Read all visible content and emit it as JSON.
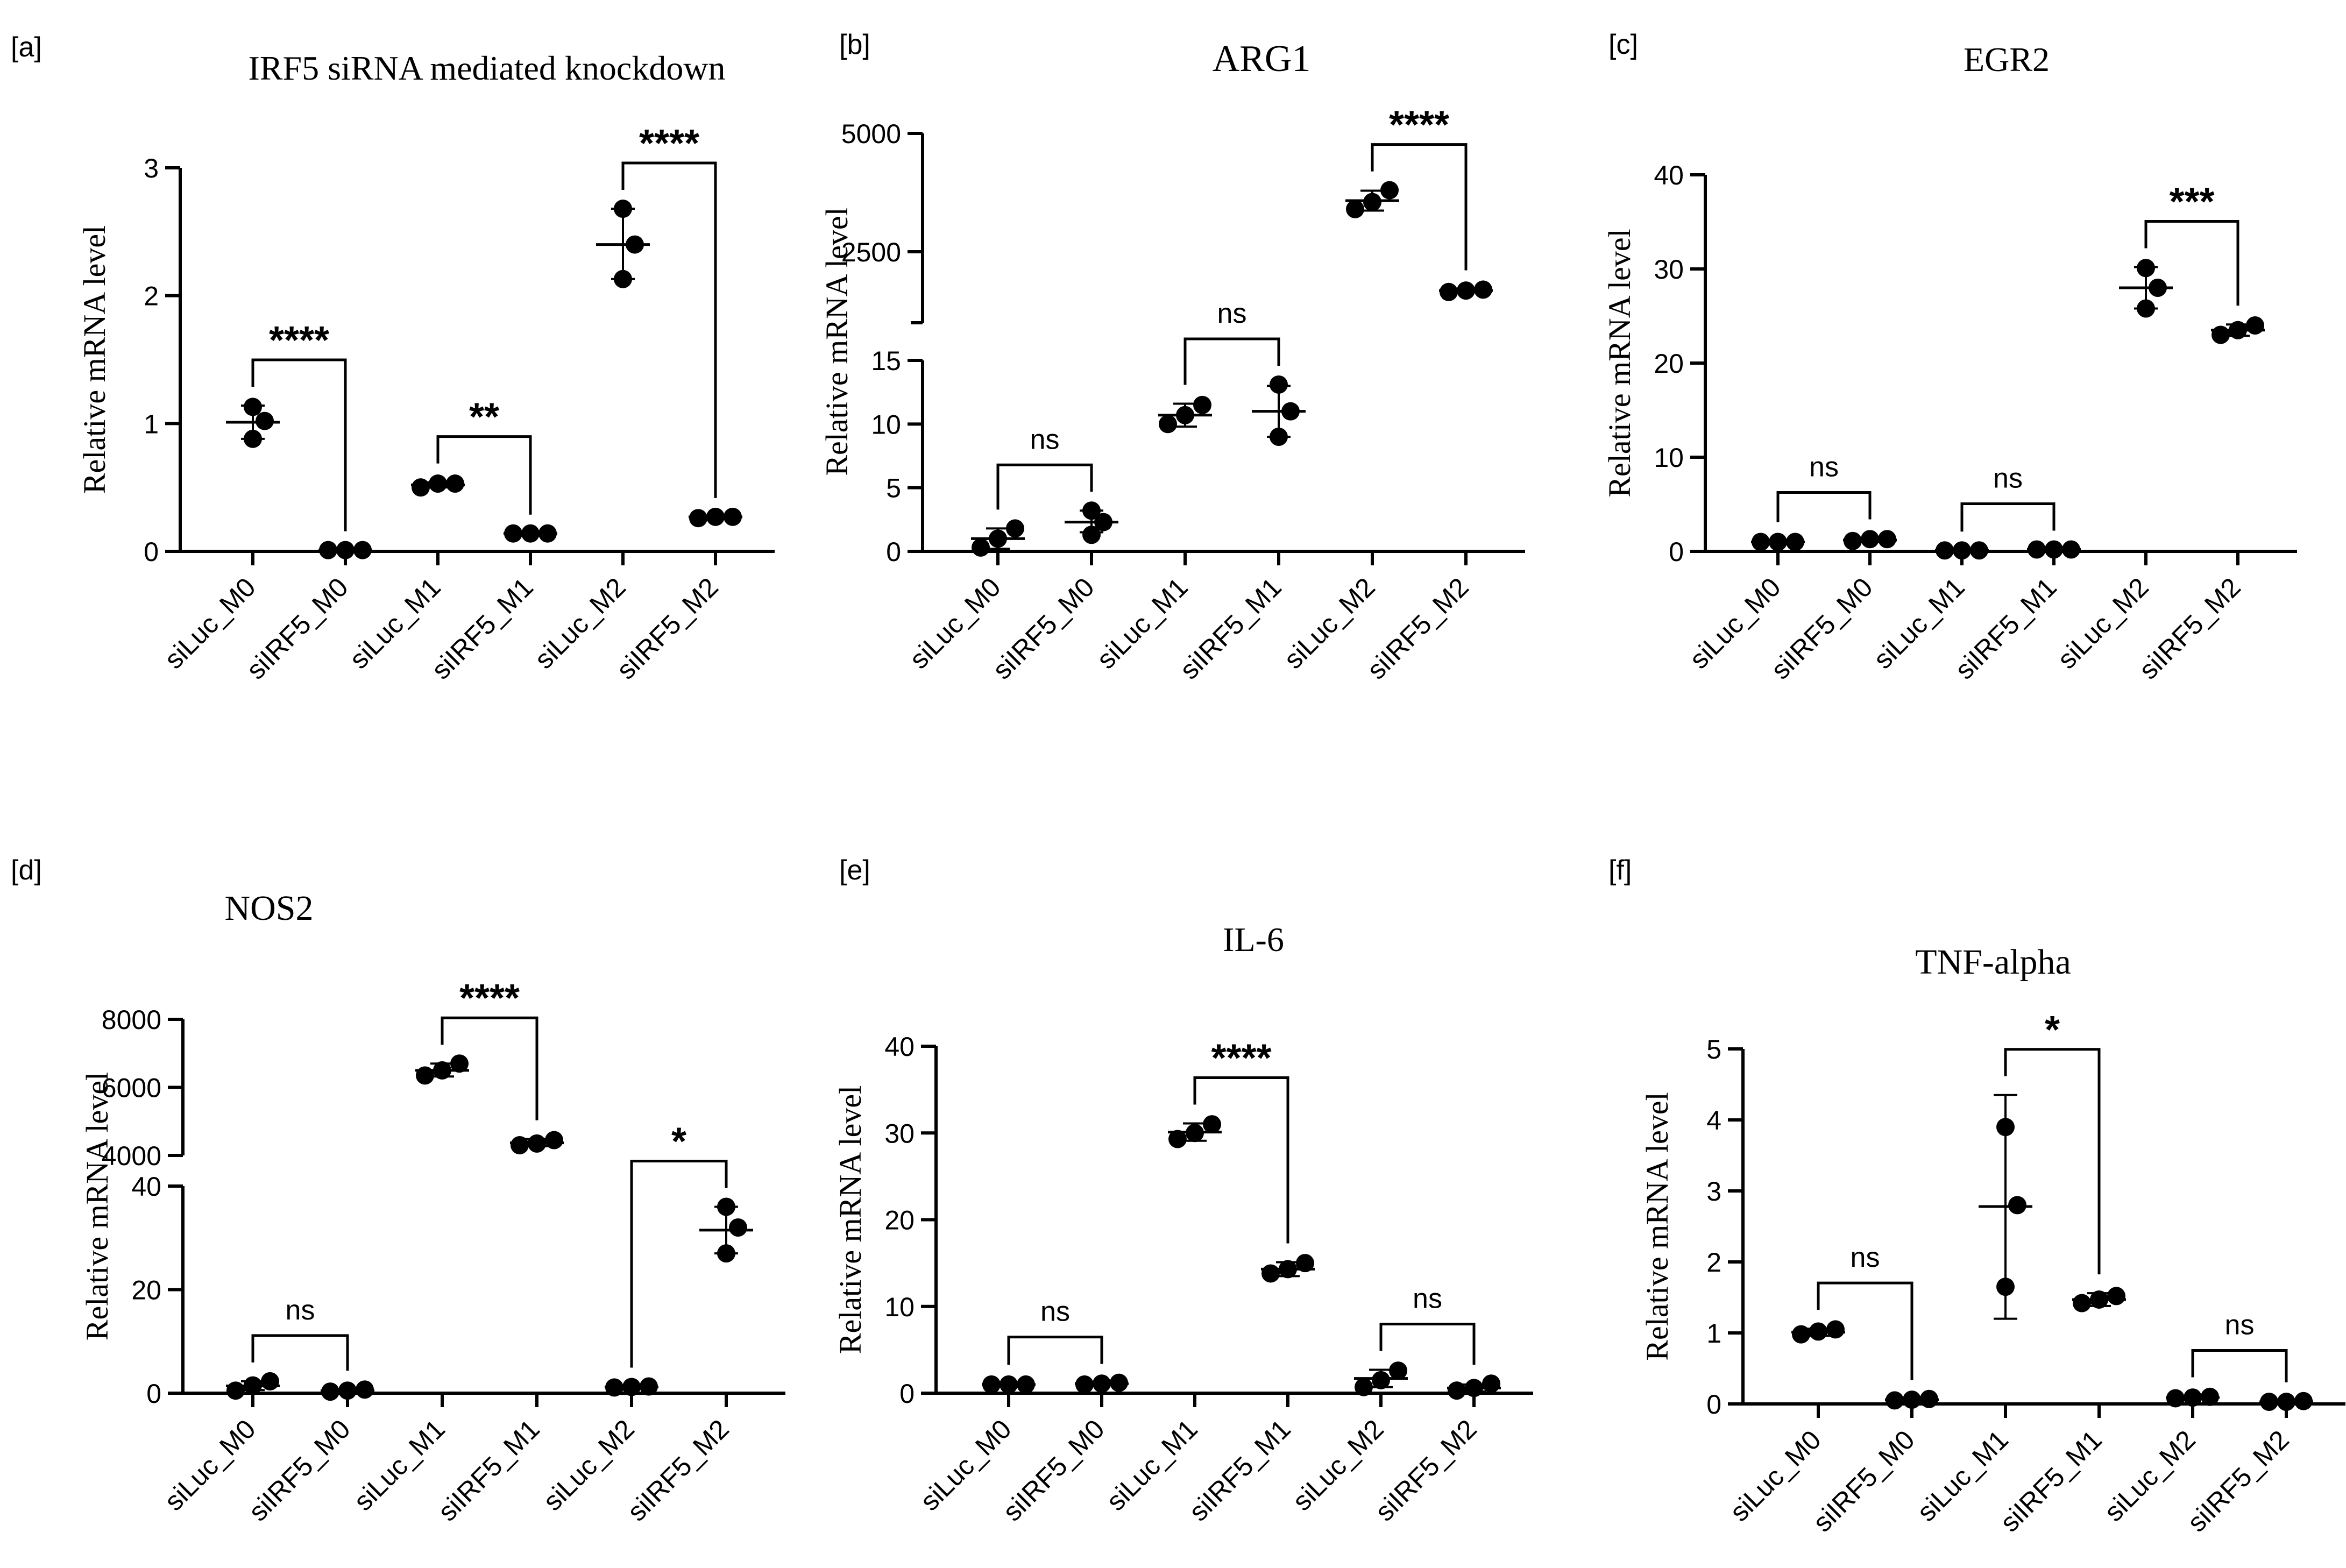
{
  "chart_data": [
    {
      "panel": "[a]",
      "type": "scatter",
      "title": "IRF5 siRNA mediated knockdown",
      "ylabel": "Relative mRNA level",
      "categories": [
        "siLuc_M0",
        "siIRF5_M0",
        "siLuc_M1",
        "siIRF5_M1",
        "siLuc_M2",
        "siIRF5_M2"
      ],
      "y_ticks": [
        "0",
        "1",
        "2",
        "3"
      ],
      "ylim": [
        0,
        3
      ],
      "points": [
        [
          0.88,
          1.02,
          1.13
        ],
        [
          0.01,
          0.01,
          0.01
        ],
        [
          0.5,
          0.53,
          0.53
        ],
        [
          0.14,
          0.14,
          0.14
        ],
        [
          2.13,
          2.4,
          2.68
        ],
        [
          0.26,
          0.27,
          0.27
        ]
      ],
      "mean": [
        1.01,
        0.01,
        0.52,
        0.14,
        2.4,
        0.27
      ],
      "sd_low": [
        0.88,
        0.01,
        0.5,
        0.14,
        2.13,
        0.26
      ],
      "sd_high": [
        1.14,
        0.01,
        0.54,
        0.14,
        2.68,
        0.27
      ],
      "comparisons": [
        {
          "pair": [
            0,
            1
          ],
          "label": "****"
        },
        {
          "pair": [
            2,
            3
          ],
          "label": "**"
        },
        {
          "pair": [
            4,
            5
          ],
          "label": "****"
        }
      ]
    },
    {
      "panel": "[b]",
      "type": "scatter",
      "title": "ARG1",
      "ylabel": "Relative mRNA level",
      "categories": [
        "siLuc_M0",
        "siIRF5_M0",
        "siLuc_M1",
        "siIRF5_M1",
        "siLuc_M2",
        "siIRF5_M2"
      ],
      "y_ticks": [
        "0",
        "5",
        "10",
        "15",
        "2500",
        "5000"
      ],
      "broken_axis": {
        "lower": [
          0,
          15
        ],
        "upper": [
          1000,
          5000
        ]
      },
      "points": [
        [
          0.3,
          1.0,
          1.8
        ],
        [
          1.3,
          2.3,
          3.2
        ],
        [
          10.0,
          10.7,
          11.5
        ],
        [
          9.0,
          11.0,
          13.1
        ],
        [
          3400,
          3550,
          3800
        ],
        [
          1650,
          1680,
          1700
        ]
      ],
      "mean": [
        1.0,
        2.3,
        10.7,
        11.0,
        3580,
        1680
      ],
      "sd_low": [
        0.2,
        1.5,
        9.8,
        9.0,
        3370,
        1650
      ],
      "sd_high": [
        1.8,
        3.2,
        11.6,
        13.0,
        3790,
        1710
      ],
      "comparisons": [
        {
          "pair": [
            0,
            1
          ],
          "label": "ns"
        },
        {
          "pair": [
            2,
            3
          ],
          "label": "ns"
        },
        {
          "pair": [
            4,
            5
          ],
          "label": "****"
        }
      ]
    },
    {
      "panel": "[c]",
      "type": "scatter",
      "title": "EGR2",
      "ylabel": "Relative mRNA level",
      "categories": [
        "siLuc_M0",
        "siIRF5_M0",
        "siLuc_M1",
        "siIRF5_M1",
        "siLuc_M2",
        "siIRF5_M2"
      ],
      "y_ticks": [
        "0",
        "10",
        "20",
        "30",
        "40"
      ],
      "ylim": [
        0,
        40
      ],
      "points": [
        [
          1.0,
          1.0,
          1.0
        ],
        [
          1.1,
          1.3,
          1.3
        ],
        [
          0.1,
          0.1,
          0.1
        ],
        [
          0.2,
          0.2,
          0.2
        ],
        [
          25.8,
          28.0,
          30.1
        ],
        [
          23.0,
          23.5,
          24.0
        ]
      ],
      "mean": [
        1.0,
        1.2,
        0.1,
        0.2,
        28.0,
        23.5
      ],
      "sd_low": [
        0.9,
        1.0,
        0.1,
        0.2,
        25.8,
        22.9
      ],
      "sd_high": [
        1.1,
        1.4,
        0.1,
        0.2,
        30.2,
        24.1
      ],
      "comparisons": [
        {
          "pair": [
            0,
            1
          ],
          "label": "ns"
        },
        {
          "pair": [
            2,
            3
          ],
          "label": "ns"
        },
        {
          "pair": [
            4,
            5
          ],
          "label": "***"
        }
      ]
    },
    {
      "panel": "[d]",
      "type": "scatter",
      "title": "NOS2",
      "ylabel": "Relative mRNA level",
      "categories": [
        "siLuc_M0",
        "siIRF5_M0",
        "siLuc_M1",
        "siIRF5_M1",
        "siLuc_M2",
        "siIRF5_M2"
      ],
      "y_ticks": [
        "0",
        "20",
        "40",
        "4000",
        "6000",
        "8000"
      ],
      "broken_axis": {
        "lower": [
          0,
          40
        ],
        "upper": [
          4000,
          8000
        ]
      },
      "points": [
        [
          0.5,
          1.5,
          2.3
        ],
        [
          0.3,
          0.5,
          0.7
        ],
        [
          6350,
          6500,
          6700
        ],
        [
          4300,
          4350,
          4450
        ],
        [
          1.1,
          1.2,
          1.3
        ],
        [
          27.0,
          32.0,
          36.0
        ]
      ],
      "mean": [
        1.4,
        0.5,
        6500,
        4370,
        1.2,
        31.5
      ],
      "sd_low": [
        0.6,
        0.3,
        6320,
        4270,
        1.0,
        27.0
      ],
      "sd_high": [
        2.3,
        0.7,
        6700,
        4480,
        1.3,
        36.0
      ],
      "comparisons": [
        {
          "pair": [
            0,
            1
          ],
          "label": "ns"
        },
        {
          "pair": [
            2,
            3
          ],
          "label": "****"
        },
        {
          "pair": [
            4,
            5
          ],
          "label": "*"
        }
      ]
    },
    {
      "panel": "[e]",
      "type": "scatter",
      "title": "IL-6",
      "ylabel": "Relative mRNA level",
      "categories": [
        "siLuc_M0",
        "siIRF5_M0",
        "siLuc_M1",
        "siIRF5_M1",
        "siLuc_M2",
        "siIRF5_M2"
      ],
      "y_ticks": [
        "0",
        "10",
        "20",
        "30",
        "40"
      ],
      "ylim": [
        0,
        40
      ],
      "points": [
        [
          1.0,
          1.0,
          1.0
        ],
        [
          1.0,
          1.1,
          1.2
        ],
        [
          29.3,
          30.0,
          31.0
        ],
        [
          13.8,
          14.3,
          15.0
        ],
        [
          0.7,
          1.5,
          2.6
        ],
        [
          0.3,
          0.6,
          1.1
        ]
      ],
      "mean": [
        1.0,
        1.1,
        30.1,
        14.3,
        1.7,
        0.6
      ],
      "sd_low": [
        0.9,
        1.0,
        29.1,
        13.5,
        0.7,
        0.2
      ],
      "sd_high": [
        1.1,
        1.2,
        31.1,
        15.1,
        2.7,
        1.0
      ],
      "comparisons": [
        {
          "pair": [
            0,
            1
          ],
          "label": "ns"
        },
        {
          "pair": [
            2,
            3
          ],
          "label": "****"
        },
        {
          "pair": [
            4,
            5
          ],
          "label": "ns"
        }
      ]
    },
    {
      "panel": "[f]",
      "type": "scatter",
      "title": "TNF-alpha",
      "ylabel": "Relative mRNA level",
      "categories": [
        "siLuc_M0",
        "siIRF5_M0",
        "siLuc_M1",
        "siIRF5_M1",
        "siLuc_M2",
        "siIRF5_M2"
      ],
      "y_ticks": [
        "0",
        "1",
        "2",
        "3",
        "4",
        "5"
      ],
      "ylim": [
        0,
        5
      ],
      "points": [
        [
          0.98,
          1.02,
          1.05
        ],
        [
          0.05,
          0.06,
          0.07
        ],
        [
          1.65,
          2.8,
          3.9
        ],
        [
          1.42,
          1.47,
          1.52
        ],
        [
          0.08,
          0.09,
          0.1
        ],
        [
          0.03,
          0.03,
          0.04
        ]
      ],
      "mean": [
        1.01,
        0.06,
        2.78,
        1.47,
        0.09,
        0.03
      ],
      "sd_low": [
        0.96,
        0.05,
        1.2,
        1.38,
        0.07,
        0.02
      ],
      "sd_high": [
        1.06,
        0.07,
        4.35,
        1.56,
        0.11,
        0.04
      ],
      "comparisons": [
        {
          "pair": [
            0,
            1
          ],
          "label": "ns"
        },
        {
          "pair": [
            2,
            3
          ],
          "label": "*"
        },
        {
          "pair": [
            4,
            5
          ],
          "label": "ns"
        }
      ]
    }
  ]
}
